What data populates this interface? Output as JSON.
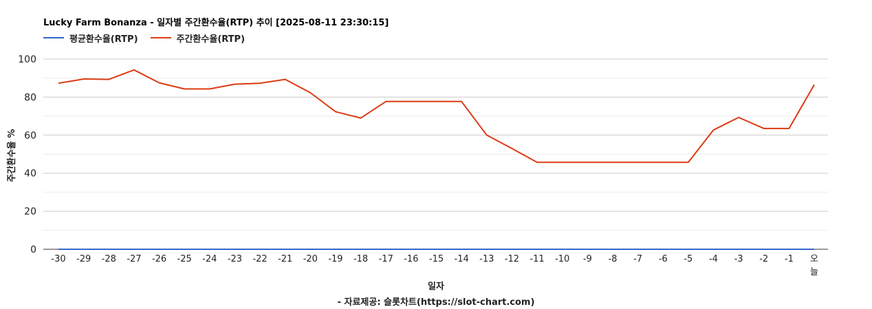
{
  "title": "Lucky Farm Bonanza - 일자별 주간환수율(RTP) 추이 [2025-08-11 23:30:15]",
  "xlabel": "일자",
  "source": "- 자료제공: 슬롯차트(https://slot-chart.com)",
  "colors": {
    "average": "#3366cc",
    "weekly": "#dc3912"
  },
  "chart_data": {
    "type": "line",
    "title": "Lucky Farm Bonanza - 일자별 주간환수율(RTP) 추이 [2025-08-11 23:30:15]",
    "xlabel": "일자",
    "ylabel": "주간환수율 %",
    "categories": [
      "-30",
      "-29",
      "-28",
      "-27",
      "-26",
      "-25",
      "-24",
      "-23",
      "-22",
      "-21",
      "-20",
      "-19",
      "-18",
      "-17",
      "-16",
      "-15",
      "-14",
      "-13",
      "-12",
      "-11",
      "-10",
      "-9",
      "-8",
      "-7",
      "-6",
      "-5",
      "-4",
      "-3",
      "-2",
      "-1",
      "오늘"
    ],
    "series": [
      {
        "name": "평균환수율(RTP)",
        "color": "#3366cc",
        "values": [
          0,
          0,
          0,
          0,
          0,
          0,
          0,
          0,
          0,
          0,
          0,
          0,
          0,
          0,
          0,
          0,
          0,
          0,
          0,
          0,
          0,
          0,
          0,
          0,
          0,
          0,
          0,
          0,
          0,
          0,
          0
        ]
      },
      {
        "name": "주간환수율(RTP)",
        "color": "#dc3912",
        "values": [
          87.3,
          89.5,
          89.3,
          94.3,
          87.5,
          84.3,
          84.3,
          86.8,
          87.3,
          89.3,
          82.3,
          72.3,
          69.0,
          77.7,
          77.7,
          77.7,
          77.7,
          60.0,
          53.0,
          45.7,
          45.7,
          45.7,
          45.7,
          45.7,
          45.7,
          45.7,
          62.7,
          69.3,
          63.5,
          63.5,
          86.5
        ]
      }
    ],
    "ylim": [
      0,
      100
    ],
    "yticks": [
      0,
      20,
      40,
      60,
      80,
      100
    ],
    "grid": true,
    "legend": "top-left"
  }
}
